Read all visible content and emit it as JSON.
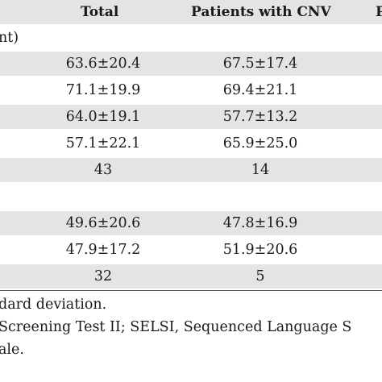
{
  "header": {
    "col_total": "Total",
    "col_cnv": "Patients with CNV",
    "col_next": "P"
  },
  "sections": [
    {
      "label": "nt)",
      "rows": [
        {
          "total": "63.6±20.4",
          "cnv": "67.5±17.4"
        },
        {
          "total": "71.1±19.9",
          "cnv": "69.4±21.1"
        },
        {
          "total": "64.0±19.1",
          "cnv": "57.7±13.2"
        },
        {
          "total": "57.1±22.1",
          "cnv": "65.9±25.0"
        },
        {
          "total": "43",
          "cnv": "14"
        }
      ]
    },
    {
      "label": "",
      "rows": [
        {
          "total": "49.6±20.6",
          "cnv": "47.8±16.9"
        },
        {
          "total": "47.9±17.2",
          "cnv": "51.9±20.6"
        },
        {
          "total": "32",
          "cnv": "5"
        }
      ]
    }
  ],
  "footnotes": [
    "dard deviation.",
    "Screening Test II; SELSI, Sequenced Language S",
    "ale."
  ]
}
